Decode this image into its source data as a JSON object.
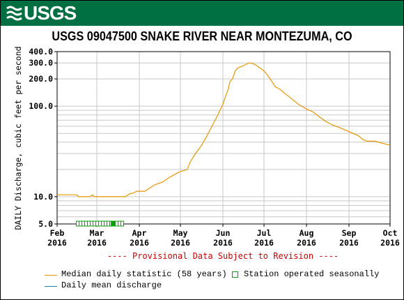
{
  "header": {
    "logo_text": "USGS",
    "logo_icon": "usgs-wave-icon",
    "color": "#006f41"
  },
  "chart_data": {
    "type": "line",
    "title": "USGS 09047500 SNAKE RIVER NEAR MONTEZUMA, CO",
    "ylabel": "DAILY Discharge, cubic feet per second",
    "xlabel": "",
    "yscale": "log",
    "ylim": [
      5,
      400
    ],
    "y_ticks": [
      "400.0",
      "300.0",
      "200.0",
      "100.0",
      "10.0",
      "5.0"
    ],
    "y_tick_values": [
      400,
      300,
      200,
      100,
      10,
      5
    ],
    "x_ticks": [
      {
        "month": "Feb",
        "year": "2016",
        "date": "2016-02-01"
      },
      {
        "month": "Mar",
        "year": "2016",
        "date": "2016-03-01"
      },
      {
        "month": "Apr",
        "year": "2016",
        "date": "2016-04-01"
      },
      {
        "month": "May",
        "year": "2016",
        "date": "2016-05-01"
      },
      {
        "month": "Jun",
        "year": "2016",
        "date": "2016-06-01"
      },
      {
        "month": "Jul",
        "year": "2016",
        "date": "2016-07-01"
      },
      {
        "month": "Aug",
        "year": "2016",
        "date": "2016-08-01"
      },
      {
        "month": "Sep",
        "year": "2016",
        "date": "2016-09-01"
      },
      {
        "month": "Oct",
        "year": "2016",
        "date": "2016-10-01"
      }
    ],
    "xlim": [
      "2016-02-01",
      "2016-10-01"
    ],
    "grid": true,
    "series": [
      {
        "name": "Median daily statistic (58 years)",
        "color": "#e69600",
        "points": [
          [
            "2016-02-01",
            10.5
          ],
          [
            "2016-02-15",
            10.5
          ],
          [
            "2016-02-17",
            10.0
          ],
          [
            "2016-02-25",
            10.0
          ],
          [
            "2016-02-27",
            10.5
          ],
          [
            "2016-02-28",
            10.0
          ],
          [
            "2016-03-15",
            10.0
          ],
          [
            "2016-03-22",
            10.0
          ],
          [
            "2016-03-25",
            10.8
          ],
          [
            "2016-03-28",
            11.0
          ],
          [
            "2016-03-30",
            11.5
          ],
          [
            "2016-04-05",
            11.5
          ],
          [
            "2016-04-08",
            12.3
          ],
          [
            "2016-04-12",
            13.5
          ],
          [
            "2016-04-18",
            14.5
          ],
          [
            "2016-04-22",
            16.0
          ],
          [
            "2016-04-28",
            18.0
          ],
          [
            "2016-05-01",
            19.0
          ],
          [
            "2016-05-06",
            20.0
          ],
          [
            "2016-05-08",
            24.0
          ],
          [
            "2016-05-12",
            30.0
          ],
          [
            "2016-05-16",
            36.0
          ],
          [
            "2016-05-20",
            46.0
          ],
          [
            "2016-05-24",
            60.0
          ],
          [
            "2016-05-28",
            78.0
          ],
          [
            "2016-06-01",
            105.0
          ],
          [
            "2016-06-03",
            130.0
          ],
          [
            "2016-06-05",
            155.0
          ],
          [
            "2016-06-06",
            185.0
          ],
          [
            "2016-06-08",
            200.0
          ],
          [
            "2016-06-10",
            245.0
          ],
          [
            "2016-06-12",
            265.0
          ],
          [
            "2016-06-15",
            275.0
          ],
          [
            "2016-06-18",
            290.0
          ],
          [
            "2016-06-20",
            300.0
          ],
          [
            "2016-06-23",
            295.0
          ],
          [
            "2016-06-25",
            285.0
          ],
          [
            "2016-06-28",
            265.0
          ],
          [
            "2016-07-01",
            245.0
          ],
          [
            "2016-07-03",
            225.0
          ],
          [
            "2016-07-06",
            195.0
          ],
          [
            "2016-07-09",
            165.0
          ],
          [
            "2016-07-13",
            152.0
          ],
          [
            "2016-07-17",
            135.0
          ],
          [
            "2016-07-22",
            118.0
          ],
          [
            "2016-07-26",
            105.0
          ],
          [
            "2016-08-01",
            93.0
          ],
          [
            "2016-08-06",
            86.0
          ],
          [
            "2016-08-10",
            77.0
          ],
          [
            "2016-08-15",
            68.0
          ],
          [
            "2016-08-20",
            62.0
          ],
          [
            "2016-08-25",
            58.0
          ],
          [
            "2016-08-30",
            54.0
          ],
          [
            "2016-09-04",
            50.0
          ],
          [
            "2016-09-08",
            47.0
          ],
          [
            "2016-09-11",
            43.0
          ],
          [
            "2016-09-14",
            41.0
          ],
          [
            "2016-09-20",
            41.0
          ],
          [
            "2016-09-24",
            39.5
          ],
          [
            "2016-09-28",
            38.0
          ],
          [
            "2016-10-01",
            37.0
          ]
        ]
      },
      {
        "name": "Daily mean discharge",
        "color": "#1f7fa0",
        "points": []
      }
    ],
    "seasonal_marker": {
      "name": "Station operated seasonally",
      "color": "#00a000",
      "ranges": [
        {
          "start": "2016-02-15",
          "end": "2016-03-21",
          "y": 5.0
        }
      ]
    },
    "annotation": "---- Provisional Data Subject to Revision ----",
    "legend_placement": "bottom-left"
  }
}
